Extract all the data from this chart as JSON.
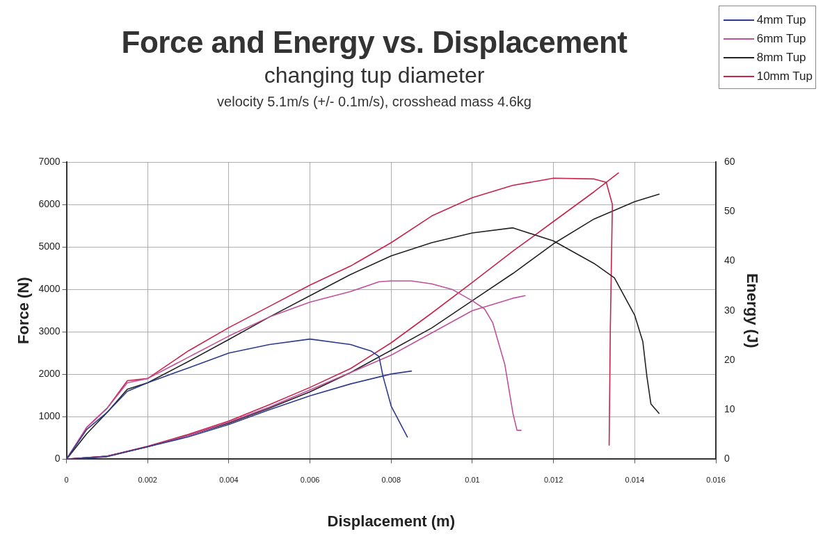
{
  "chart_data": {
    "type": "line",
    "title": "Force and Energy vs. Displacement",
    "subtitle": "changing tup diameter\nvelocity 5.1m/s (+/- 0.1m/s), crosshead mass 4.6kg",
    "xlabel": "Displacement (m)",
    "ylabel": "Force (N)",
    "y2label": "Energy (J)",
    "xlim": [
      0,
      0.016
    ],
    "xticks": [
      0,
      0.002,
      0.004,
      0.006,
      0.008,
      0.01,
      0.012,
      0.014,
      0.016
    ],
    "ylim": [
      0,
      7000
    ],
    "yticks": [
      0,
      1000,
      2000,
      3000,
      4000,
      5000,
      6000,
      7000
    ],
    "y2lim": [
      0,
      60
    ],
    "y2ticks": [
      0,
      10,
      20,
      30,
      40,
      50,
      60
    ],
    "grid": true,
    "legend": "top right",
    "line_style": "solid",
    "series": [
      {
        "name": "4mm Tup",
        "color": "#2e3a8c",
        "x": [
          0,
          0.0005,
          0.001,
          0.0015,
          0.002,
          0.003,
          0.004,
          0.005,
          0.006,
          0.007,
          0.0075,
          0.0077,
          0.0078,
          0.008,
          0.0084
        ],
        "values": [
          0,
          700,
          1100,
          1600,
          1800,
          2150,
          2500,
          2700,
          2830,
          2700,
          2550,
          2420,
          1950,
          1250,
          520
        ]
      },
      {
        "name": "6mm Tup",
        "color": "#c0509a",
        "x": [
          0,
          0.0005,
          0.001,
          0.0015,
          0.002,
          0.003,
          0.004,
          0.005,
          0.006,
          0.007,
          0.0077,
          0.008,
          0.0085,
          0.009,
          0.0095,
          0.01,
          0.0103,
          0.0105,
          0.0108,
          0.011,
          0.0111,
          0.0112
        ],
        "values": [
          0,
          750,
          1200,
          1800,
          1900,
          2400,
          2900,
          3350,
          3700,
          3950,
          4180,
          4200,
          4200,
          4130,
          4000,
          3730,
          3540,
          3220,
          2230,
          1080,
          680,
          680
        ]
      },
      {
        "name": "8mm Tup",
        "color": "#222222",
        "x": [
          0,
          0.0005,
          0.001,
          0.0015,
          0.002,
          0.003,
          0.004,
          0.005,
          0.006,
          0.007,
          0.008,
          0.009,
          0.01,
          0.011,
          0.012,
          0.013,
          0.0135,
          0.014,
          0.0142,
          0.0143,
          0.0144,
          0.0146
        ],
        "values": [
          0,
          600,
          1100,
          1650,
          1800,
          2300,
          2820,
          3350,
          3850,
          4350,
          4790,
          5100,
          5330,
          5450,
          5140,
          4610,
          4270,
          3390,
          2770,
          1950,
          1300,
          1080
        ]
      },
      {
        "name": "10mm Tup",
        "color": "#c8234a",
        "x": [
          0,
          0.0005,
          0.001,
          0.0015,
          0.002,
          0.003,
          0.004,
          0.005,
          0.006,
          0.007,
          0.008,
          0.009,
          0.01,
          0.011,
          0.012,
          0.013,
          0.0133,
          0.01345,
          0.0134,
          0.01337
        ],
        "values": [
          0,
          750,
          1200,
          1850,
          1900,
          2550,
          3100,
          3600,
          4100,
          4550,
          5100,
          5730,
          6160,
          6450,
          6620,
          6600,
          6520,
          6000,
          3120,
          330
        ]
      },
      {
        "color": "#2e3a8c",
        "axis": "y2",
        "x": [
          0,
          0.001,
          0.002,
          0.003,
          0.004,
          0.005,
          0.006,
          0.007,
          0.008,
          0.0085
        ],
        "values": [
          0,
          0.5,
          2.5,
          4.5,
          7,
          10,
          12.8,
          15.2,
          17.2,
          17.8
        ]
      },
      {
        "color": "#c0509a",
        "axis": "y2",
        "x": [
          0,
          0.001,
          0.002,
          0.003,
          0.004,
          0.005,
          0.006,
          0.007,
          0.008,
          0.009,
          0.01,
          0.011,
          0.0113
        ],
        "values": [
          0,
          0.6,
          2.5,
          4.8,
          7.5,
          10.5,
          14,
          17.5,
          21,
          25.5,
          30,
          32.5,
          33
        ]
      },
      {
        "color": "#222222",
        "axis": "y2",
        "x": [
          0,
          0.001,
          0.002,
          0.003,
          0.004,
          0.005,
          0.006,
          0.007,
          0.008,
          0.009,
          0.01,
          0.011,
          0.012,
          0.013,
          0.014,
          0.0146
        ],
        "values": [
          0,
          0.6,
          2.5,
          4.8,
          7.3,
          10.3,
          13.6,
          17.5,
          22,
          26.5,
          32,
          37.5,
          43.5,
          48.5,
          52,
          53.5
        ]
      },
      {
        "color": "#c8234a",
        "axis": "y2",
        "x": [
          0,
          0.001,
          0.002,
          0.003,
          0.004,
          0.005,
          0.006,
          0.007,
          0.008,
          0.009,
          0.01,
          0.011,
          0.012,
          0.013,
          0.0136
        ],
        "values": [
          0,
          0.6,
          2.6,
          5,
          7.7,
          11,
          14.5,
          18.3,
          23.5,
          29.5,
          35.7,
          42,
          48,
          54,
          57.8
        ]
      }
    ]
  }
}
